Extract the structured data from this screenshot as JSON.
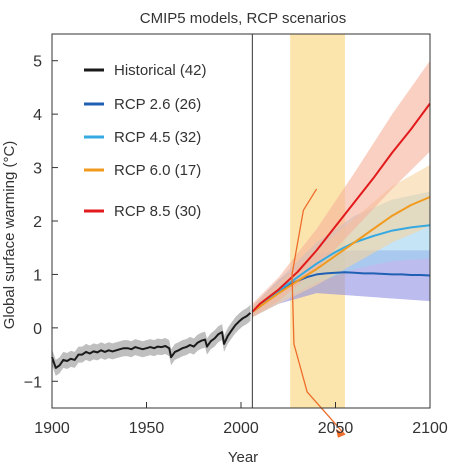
{
  "chart_data": {
    "type": "line",
    "title": "CMIP5 models, RCP scenarios",
    "xlabel": "Year",
    "ylabel": "Global surface warming (°C)",
    "xlim": [
      1900,
      2100
    ],
    "ylim": [
      -1.5,
      5.5
    ],
    "xticks": [
      1900,
      1950,
      2000,
      2050,
      2100
    ],
    "yticks": [
      -1,
      0,
      1,
      2,
      3,
      4,
      5
    ],
    "grid": false,
    "legend_position": "top-left",
    "reference_line_year": 2006,
    "highlight_band": {
      "x_start": 2026,
      "x_end": 2055,
      "color": "#fbe5ad"
    },
    "annotation_arrow": {
      "color": "#ee6c2a",
      "points": [
        [
          2040,
          2.6
        ],
        [
          2033,
          2.2
        ],
        [
          2027,
          1.0
        ],
        [
          2028,
          -0.3
        ],
        [
          2035,
          -1.2
        ],
        [
          2055,
          -2.0
        ]
      ]
    },
    "series": [
      {
        "name": "Historical (42)",
        "color": "#1a1a1a",
        "band_color": "#b8b8b8",
        "points": [
          [
            1900,
            -0.55
          ],
          [
            1902,
            -0.75
          ],
          [
            1904,
            -0.7
          ],
          [
            1906,
            -0.6
          ],
          [
            1908,
            -0.62
          ],
          [
            1910,
            -0.58
          ],
          [
            1912,
            -0.6
          ],
          [
            1914,
            -0.5
          ],
          [
            1916,
            -0.5
          ],
          [
            1918,
            -0.45
          ],
          [
            1920,
            -0.48
          ],
          [
            1922,
            -0.44
          ],
          [
            1924,
            -0.46
          ],
          [
            1926,
            -0.42
          ],
          [
            1928,
            -0.45
          ],
          [
            1930,
            -0.42
          ],
          [
            1932,
            -0.44
          ],
          [
            1934,
            -0.42
          ],
          [
            1936,
            -0.4
          ],
          [
            1938,
            -0.38
          ],
          [
            1940,
            -0.38
          ],
          [
            1942,
            -0.4
          ],
          [
            1944,
            -0.36
          ],
          [
            1946,
            -0.38
          ],
          [
            1948,
            -0.4
          ],
          [
            1950,
            -0.38
          ],
          [
            1952,
            -0.36
          ],
          [
            1954,
            -0.38
          ],
          [
            1956,
            -0.35
          ],
          [
            1958,
            -0.36
          ],
          [
            1960,
            -0.34
          ],
          [
            1962,
            -0.38
          ],
          [
            1963,
            -0.55
          ],
          [
            1965,
            -0.45
          ],
          [
            1967,
            -0.42
          ],
          [
            1969,
            -0.38
          ],
          [
            1971,
            -0.36
          ],
          [
            1973,
            -0.32
          ],
          [
            1975,
            -0.35
          ],
          [
            1977,
            -0.28
          ],
          [
            1979,
            -0.24
          ],
          [
            1981,
            -0.22
          ],
          [
            1982,
            -0.35
          ],
          [
            1984,
            -0.25
          ],
          [
            1986,
            -0.2
          ],
          [
            1988,
            -0.12
          ],
          [
            1990,
            -0.08
          ],
          [
            1991,
            -0.3
          ],
          [
            1993,
            -0.15
          ],
          [
            1995,
            -0.05
          ],
          [
            1997,
            0.05
          ],
          [
            1999,
            0.12
          ],
          [
            2001,
            0.18
          ],
          [
            2003,
            0.22
          ],
          [
            2005,
            0.28
          ]
        ],
        "band_half_width": 0.15
      },
      {
        "name": "RCP 2.6 (26)",
        "color": "#1f5fb4",
        "band_color": "#8f8fe3",
        "points": [
          [
            2006,
            0.3
          ],
          [
            2010,
            0.4
          ],
          [
            2015,
            0.55
          ],
          [
            2020,
            0.68
          ],
          [
            2025,
            0.8
          ],
          [
            2030,
            0.88
          ],
          [
            2035,
            0.95
          ],
          [
            2040,
            1.0
          ],
          [
            2045,
            1.02
          ],
          [
            2050,
            1.03
          ],
          [
            2055,
            1.04
          ],
          [
            2060,
            1.03
          ],
          [
            2065,
            1.02
          ],
          [
            2070,
            1.02
          ],
          [
            2075,
            1.01
          ],
          [
            2080,
            1.0
          ],
          [
            2085,
            1.0
          ],
          [
            2090,
            0.99
          ],
          [
            2095,
            0.99
          ],
          [
            2100,
            0.98
          ]
        ],
        "band": [
          [
            2006,
            0.2,
            0.4
          ],
          [
            2020,
            0.45,
            0.9
          ],
          [
            2040,
            0.65,
            1.4
          ],
          [
            2060,
            0.6,
            1.45
          ],
          [
            2080,
            0.55,
            1.45
          ],
          [
            2100,
            0.5,
            1.45
          ]
        ]
      },
      {
        "name": "RCP 4.5 (32)",
        "color": "#35a9e0",
        "band_color": "#9fd2ee",
        "points": [
          [
            2006,
            0.3
          ],
          [
            2010,
            0.42
          ],
          [
            2020,
            0.7
          ],
          [
            2030,
            0.95
          ],
          [
            2040,
            1.2
          ],
          [
            2050,
            1.42
          ],
          [
            2060,
            1.6
          ],
          [
            2070,
            1.72
          ],
          [
            2080,
            1.82
          ],
          [
            2090,
            1.88
          ],
          [
            2100,
            1.92
          ]
        ],
        "band": [
          [
            2006,
            0.2,
            0.4
          ],
          [
            2020,
            0.5,
            0.9
          ],
          [
            2040,
            0.85,
            1.6
          ],
          [
            2060,
            1.1,
            2.1
          ],
          [
            2080,
            1.25,
            2.4
          ],
          [
            2100,
            1.3,
            2.55
          ]
        ]
      },
      {
        "name": "RCP 6.0 (17)",
        "color": "#f29a1d",
        "band_color": "#f7d3a0",
        "points": [
          [
            2006,
            0.3
          ],
          [
            2010,
            0.4
          ],
          [
            2020,
            0.65
          ],
          [
            2030,
            0.88
          ],
          [
            2040,
            1.1
          ],
          [
            2050,
            1.35
          ],
          [
            2060,
            1.6
          ],
          [
            2070,
            1.85
          ],
          [
            2080,
            2.1
          ],
          [
            2090,
            2.3
          ],
          [
            2100,
            2.45
          ]
        ],
        "band": [
          [
            2006,
            0.2,
            0.4
          ],
          [
            2020,
            0.45,
            0.85
          ],
          [
            2040,
            0.8,
            1.45
          ],
          [
            2060,
            1.2,
            2.05
          ],
          [
            2080,
            1.6,
            2.65
          ],
          [
            2100,
            1.9,
            3.05
          ]
        ]
      },
      {
        "name": "RCP 8.5 (30)",
        "color": "#e31a1c",
        "band_color": "#f6b09a",
        "points": [
          [
            2006,
            0.3
          ],
          [
            2010,
            0.45
          ],
          [
            2020,
            0.72
          ],
          [
            2030,
            1.05
          ],
          [
            2040,
            1.45
          ],
          [
            2050,
            1.9
          ],
          [
            2060,
            2.35
          ],
          [
            2070,
            2.8
          ],
          [
            2080,
            3.28
          ],
          [
            2090,
            3.72
          ],
          [
            2100,
            4.2
          ]
        ],
        "band": [
          [
            2006,
            0.2,
            0.45
          ],
          [
            2020,
            0.5,
            0.95
          ],
          [
            2040,
            1.1,
            1.85
          ],
          [
            2060,
            1.85,
            2.9
          ],
          [
            2080,
            2.6,
            4.0
          ],
          [
            2100,
            3.3,
            5.0
          ]
        ]
      }
    ]
  }
}
